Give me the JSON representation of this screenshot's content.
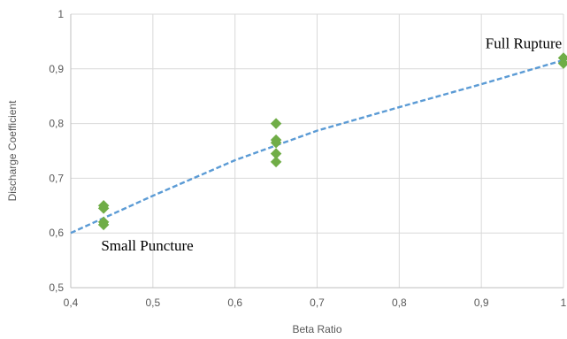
{
  "chart_data": {
    "type": "scatter",
    "title": "",
    "xlabel": "Beta Ratio",
    "ylabel": "Discharge Coefficient",
    "xlim": [
      0.4,
      1.0
    ],
    "ylim": [
      0.5,
      1.0
    ],
    "x_ticks": [
      "0,4",
      "0,5",
      "0,6",
      "0,7",
      "0,8",
      "0,9",
      "1"
    ],
    "y_ticks": [
      "0,5",
      "0,6",
      "0,7",
      "0,8",
      "0,9",
      "1"
    ],
    "grid": true,
    "legend": false,
    "series": [
      {
        "marker": "diamond",
        "color": "#70ad47",
        "points": [
          {
            "x": 0.44,
            "y": 0.65
          },
          {
            "x": 0.44,
            "y": 0.645
          },
          {
            "x": 0.44,
            "y": 0.62
          },
          {
            "x": 0.44,
            "y": 0.615
          },
          {
            "x": 0.65,
            "y": 0.8
          },
          {
            "x": 0.65,
            "y": 0.77
          },
          {
            "x": 0.65,
            "y": 0.765
          },
          {
            "x": 0.65,
            "y": 0.745
          },
          {
            "x": 0.65,
            "y": 0.73
          },
          {
            "x": 1.0,
            "y": 0.92
          },
          {
            "x": 1.0,
            "y": 0.91
          }
        ]
      },
      {
        "line_style": "dashed",
        "color": "#5b9bd5",
        "points": [
          {
            "x": 0.4,
            "y": 0.6
          },
          {
            "x": 0.5,
            "y": 0.668
          },
          {
            "x": 0.6,
            "y": 0.733
          },
          {
            "x": 0.7,
            "y": 0.787
          },
          {
            "x": 0.8,
            "y": 0.83
          },
          {
            "x": 0.9,
            "y": 0.872
          },
          {
            "x": 1.0,
            "y": 0.916
          }
        ]
      }
    ],
    "annotations": [
      {
        "text": "Full Rupture",
        "x": 0.905,
        "y": 0.938
      },
      {
        "text": "Small Puncture",
        "x": 0.437,
        "y": 0.568
      }
    ]
  }
}
